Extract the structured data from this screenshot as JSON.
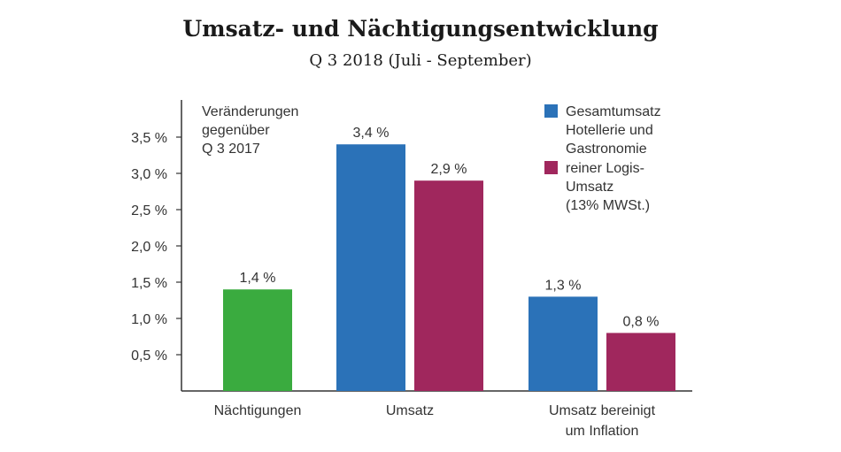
{
  "chart_data": {
    "type": "bar",
    "title": "Umsatz- und Nächtigungsentwicklung",
    "subtitle": "Q 3 2018 (Juli - September)",
    "annotation": [
      "Veränderungen",
      "gegenüber",
      "Q 3 2017"
    ],
    "y_ticks": [
      "0,5 %",
      "1,0 %",
      "1,5 %",
      "2,0 %",
      "2,5 %",
      "3,0 %",
      "3,5 %"
    ],
    "ylim": [
      0,
      4.0
    ],
    "categories": [
      [
        "Nächtigungen"
      ],
      [
        "Umsatz"
      ],
      [
        "Umsatz bereinigt",
        "um Inflation"
      ]
    ],
    "bars": [
      {
        "category": 0,
        "slot": "single",
        "value": 1.4,
        "label": "1,4 %",
        "color": "#3aab3f"
      },
      {
        "category": 1,
        "slot": "left",
        "value": 3.4,
        "label": "3,4 %",
        "color": "#2b72b8"
      },
      {
        "category": 1,
        "slot": "right",
        "value": 2.9,
        "label": "2,9 %",
        "color": "#a0275d"
      },
      {
        "category": 2,
        "slot": "left",
        "value": 1.3,
        "label": "1,3 %",
        "color": "#2b72b8"
      },
      {
        "category": 2,
        "slot": "right",
        "value": 0.8,
        "label": "0,8 %",
        "color": "#a0275d"
      }
    ],
    "legend": [
      {
        "lines": [
          "Gesamtumsatz",
          "Hotellerie und",
          "Gastronomie"
        ],
        "color": "#2b72b8"
      },
      {
        "lines": [
          "reiner Logis-",
          "Umsatz",
          "(13% MWSt.)"
        ],
        "color": "#a0275d"
      }
    ],
    "legend_position": "top-right",
    "grid": false
  }
}
